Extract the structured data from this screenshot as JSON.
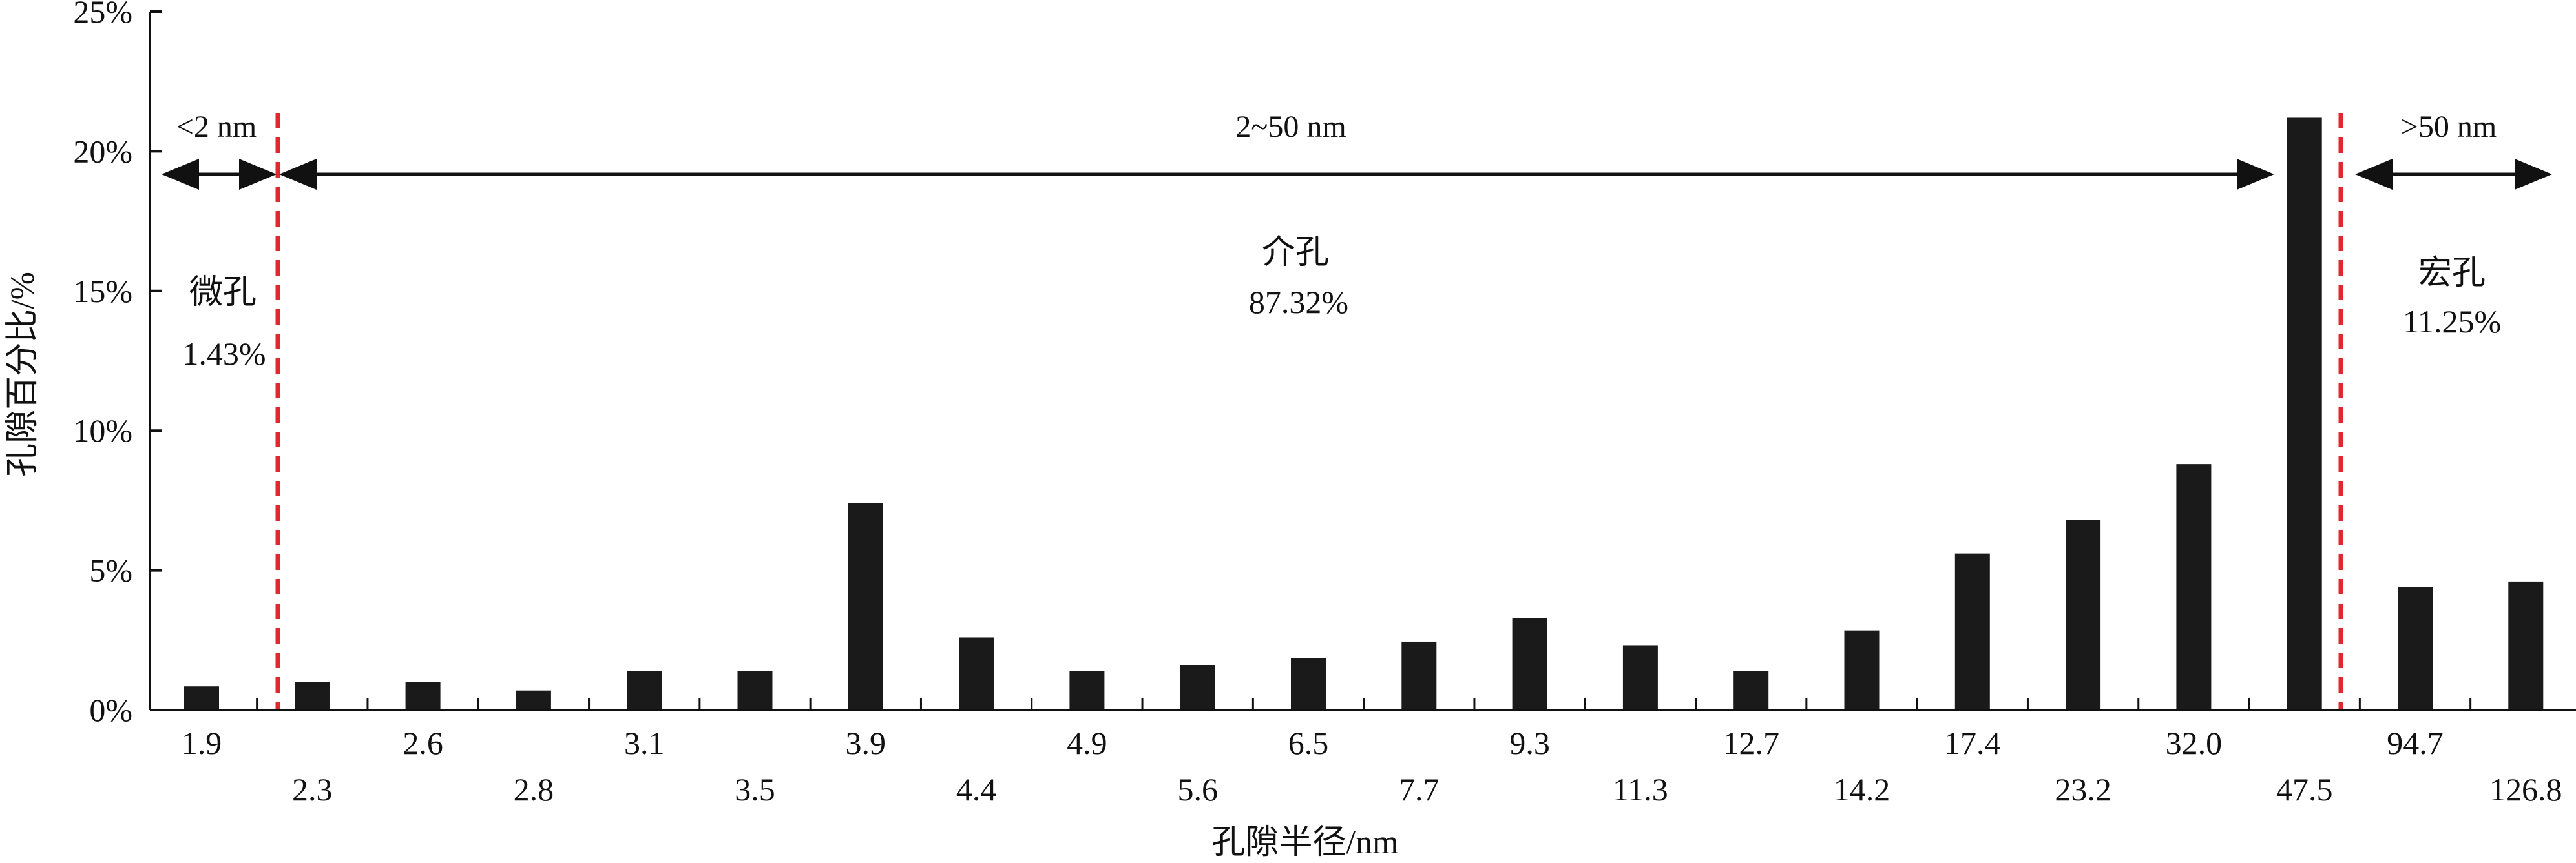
{
  "chart_data": {
    "type": "bar",
    "title": "",
    "xlabel": "孔隙半径/nm",
    "ylabel": "孔隙百分比/%",
    "ylim": [
      0,
      25
    ],
    "yticks": [
      "0%",
      "5%",
      "10%",
      "15%",
      "20%",
      "25%"
    ],
    "categories": [
      "1.9",
      "2.3",
      "2.6",
      "2.8",
      "3.1",
      "3.5",
      "3.9",
      "4.4",
      "4.9",
      "5.6",
      "6.5",
      "7.7",
      "9.3",
      "11.3",
      "12.7",
      "14.2",
      "17.4",
      "23.2",
      "32.0",
      "47.5",
      "94.7",
      "126.8"
    ],
    "values": [
      0.85,
      1.0,
      1.0,
      0.7,
      1.4,
      1.4,
      7.4,
      2.6,
      1.4,
      1.6,
      1.85,
      2.45,
      3.3,
      2.3,
      1.4,
      2.85,
      5.6,
      6.8,
      8.8,
      21.2,
      4.4,
      4.6
    ],
    "bar_color": "#1a1a1a",
    "divider_color": "#e0282d",
    "regions": [
      {
        "range": "<2 nm",
        "name": "微孔",
        "percent": "1.43%"
      },
      {
        "range": "2~50 nm",
        "name": "介孔",
        "percent": "87.32%"
      },
      {
        "range": ">50 nm",
        "name": "宏孔",
        "percent": "11.25%"
      }
    ],
    "grid": false,
    "legend": "none"
  }
}
